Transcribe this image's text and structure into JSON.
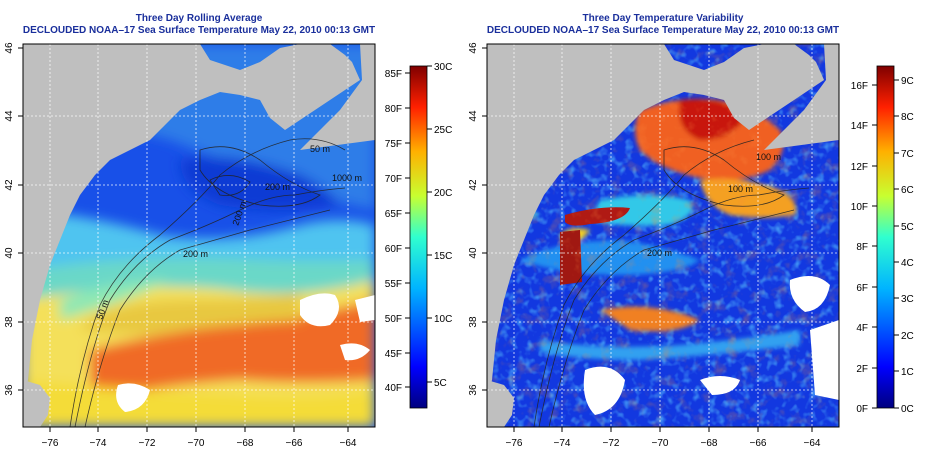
{
  "left_panel": {
    "title_line1": "Three Day Rolling Average",
    "title_line2": "DECLOUDED NOAA–17 Sea Surface Temperature May 22, 2010 00:13 GMT",
    "x_ticks": [
      "−76",
      "−74",
      "−72",
      "−70",
      "−68",
      "−66",
      "−64"
    ],
    "y_ticks": [
      "36",
      "38",
      "40",
      "42",
      "44",
      "46"
    ],
    "contour_labels": [
      "200 m",
      "200 m",
      "200 m",
      "1000 m",
      "50 m",
      "50 m"
    ],
    "colorbar_f": [
      "40F",
      "45F",
      "50F",
      "55F",
      "60F",
      "65F",
      "70F",
      "75F",
      "80F",
      "85F"
    ],
    "colorbar_c": [
      "5C",
      "10C",
      "15C",
      "20C",
      "25C",
      "30C"
    ]
  },
  "right_panel": {
    "title_line1": "Three Day Temperature Variability",
    "title_line2": "DECLOUDED NOAA–17 Sea Surface Temperature May 22, 2010 00:13 GMT",
    "x_ticks": [
      "−76",
      "−74",
      "−72",
      "−70",
      "−68",
      "−66",
      "−64"
    ],
    "y_ticks": [
      "36",
      "38",
      "40",
      "42",
      "44",
      "46"
    ],
    "contour_labels": [
      "100 m",
      "100 m",
      "200 m"
    ],
    "colorbar_f": [
      "0F",
      "2F",
      "4F",
      "6F",
      "8F",
      "10F",
      "12F",
      "14F",
      "16F"
    ],
    "colorbar_c": [
      "0C",
      "1C",
      "2C",
      "3C",
      "4C",
      "5C",
      "6C",
      "7C",
      "8C",
      "9C"
    ]
  },
  "colors": {
    "title": "#1a2f9c",
    "land": "#bfbfbf",
    "cloud": "#ffffff"
  }
}
